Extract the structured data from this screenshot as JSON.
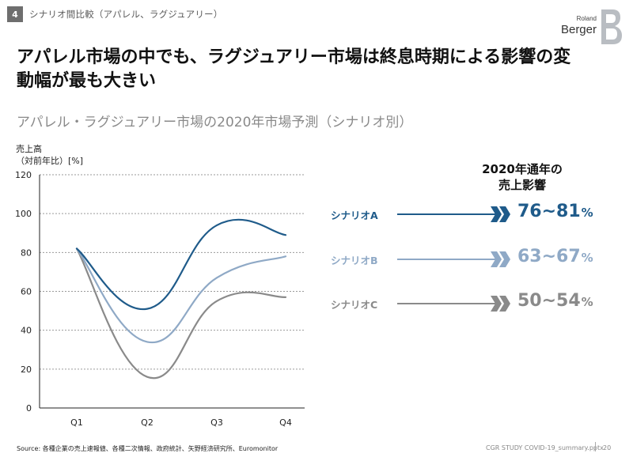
{
  "header": {
    "section_number": "4",
    "section_label": "シナリオ間比較（アパレル、ラグジュアリー）"
  },
  "logo": {
    "small": "Roland",
    "big": "Berger"
  },
  "headline": "アパレル市場の中でも、ラグジュアリー市場は終息時期による影響の変動幅が最も大きい",
  "subtitle": "アパレル・ラグジュアリー市場の2020年市場予測（シナリオ別）",
  "side_header": "2020年通年の\n売上影響",
  "scenarios": [
    {
      "name": "シナリオA",
      "value": "76~81",
      "unit": "%",
      "color": "#1f5b8a"
    },
    {
      "name": "シナリオB",
      "value": "63~67",
      "unit": "%",
      "color": "#8fa9c6"
    },
    {
      "name": "シナリオC",
      "value": "50~54",
      "unit": "%",
      "color": "#8a8a8a"
    }
  ],
  "chart_data": {
    "type": "line",
    "ylabel": "売上高\n（対前年比）[%]",
    "categories": [
      "Q1",
      "Q2",
      "Q3",
      "Q4"
    ],
    "ylim": [
      0,
      120
    ],
    "yticks": [
      0,
      20,
      40,
      60,
      80,
      100,
      120
    ],
    "grid": true,
    "series": [
      {
        "name": "シナリオA",
        "values": [
          82,
          51,
          94,
          89
        ],
        "color": "#1f5b8a"
      },
      {
        "name": "シナリオB",
        "values": [
          82,
          34,
          67,
          78
        ],
        "color": "#8fa9c6"
      },
      {
        "name": "シナリオC",
        "values": [
          82,
          16,
          55,
          57
        ],
        "color": "#8a8a8a"
      }
    ]
  },
  "footer": {
    "source": "Source: 各種企業の売上速報値、各種二次情報、政府統計、矢野経済研究所、Euromonitor",
    "doc": "CGR STUDY COVID-19_summary.pptx",
    "page": "20"
  }
}
